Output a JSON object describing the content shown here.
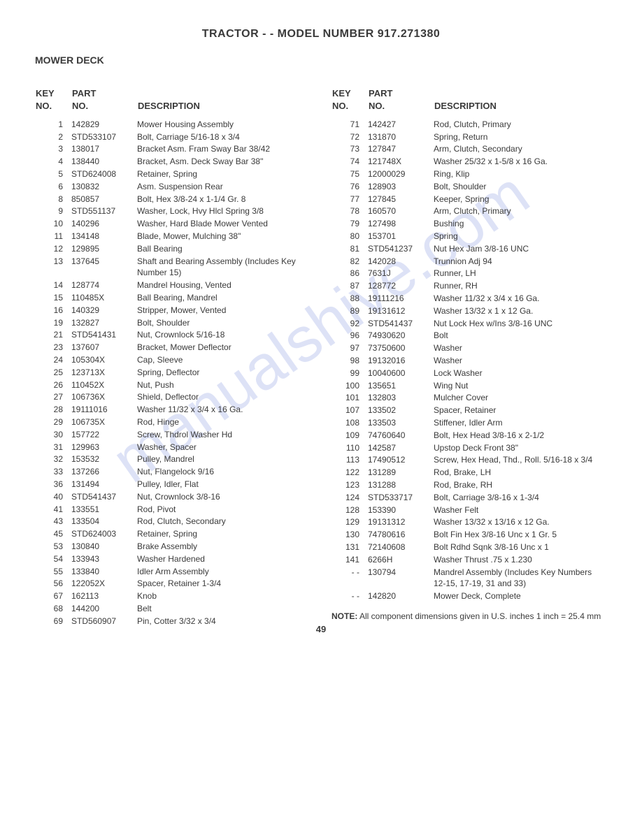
{
  "page_title": "TRACTOR - - MODEL NUMBER 917.271380",
  "section_title": "MOWER DECK",
  "headers": {
    "key_no_line1": "KEY",
    "key_no_line2": "NO.",
    "part_no_line1": "PART",
    "part_no_line2": "NO.",
    "description": "DESCRIPTION"
  },
  "left_rows": [
    {
      "key": "1",
      "part": "142829",
      "desc": "Mower Housing Assembly"
    },
    {
      "key": "2",
      "part": "STD533107",
      "desc": "Bolt, Carriage 5/16-18 x 3/4"
    },
    {
      "key": "3",
      "part": "138017",
      "desc": "Bracket Asm. Fram Sway Bar 38/42"
    },
    {
      "key": "4",
      "part": "138440",
      "desc": "Bracket, Asm. Deck Sway Bar 38\""
    },
    {
      "key": "5",
      "part": "STD624008",
      "desc": "Retainer, Spring"
    },
    {
      "key": "6",
      "part": "130832",
      "desc": "Asm. Suspension Rear"
    },
    {
      "key": "8",
      "part": "850857",
      "desc": "Bolt, Hex 3/8-24 x 1-1/4 Gr. 8"
    },
    {
      "key": "9",
      "part": "STD551137",
      "desc": "Washer, Lock, Hvy Hlcl Spring 3/8"
    },
    {
      "key": "10",
      "part": "140296",
      "desc": "Washer, Hard Blade Mower Vented"
    },
    {
      "key": "11",
      "part": "134148",
      "desc": "Blade, Mower, Mulching 38\""
    },
    {
      "key": "12",
      "part": "129895",
      "desc": "Ball Bearing"
    },
    {
      "key": "13",
      "part": "137645",
      "desc": "Shaft and Bearing Assembly (Includes Key Number 15)"
    },
    {
      "key": "14",
      "part": "128774",
      "desc": "Mandrel Housing, Vented"
    },
    {
      "key": "15",
      "part": "110485X",
      "desc": "Ball Bearing, Mandrel"
    },
    {
      "key": "16",
      "part": "140329",
      "desc": "Stripper, Mower, Vented"
    },
    {
      "key": "19",
      "part": "132827",
      "desc": "Bolt, Shoulder"
    },
    {
      "key": "21",
      "part": "STD541431",
      "desc": "Nut, Crownlock 5/16-18"
    },
    {
      "key": "23",
      "part": "137607",
      "desc": "Bracket, Mower Deflector"
    },
    {
      "key": "24",
      "part": "105304X",
      "desc": "Cap, Sleeve"
    },
    {
      "key": "25",
      "part": "123713X",
      "desc": "Spring, Deflector"
    },
    {
      "key": "26",
      "part": "110452X",
      "desc": "Nut, Push"
    },
    {
      "key": "27",
      "part": "106736X",
      "desc": "Shield, Deflector"
    },
    {
      "key": "28",
      "part": "19111016",
      "desc": "Washer 11/32 x 3/4 x 16 Ga."
    },
    {
      "key": "29",
      "part": "106735X",
      "desc": "Rod, Hinge"
    },
    {
      "key": "30",
      "part": "157722",
      "desc": "Screw, Thdrol Washer Hd"
    },
    {
      "key": "31",
      "part": "129963",
      "desc": "Washer, Spacer"
    },
    {
      "key": "32",
      "part": "153532",
      "desc": "Pulley, Mandrel"
    },
    {
      "key": "33",
      "part": "137266",
      "desc": "Nut, Flangelock 9/16"
    },
    {
      "key": "36",
      "part": "131494",
      "desc": "Pulley, Idler, Flat"
    },
    {
      "key": "40",
      "part": "STD541437",
      "desc": "Nut, Crownlock 3/8-16"
    },
    {
      "key": "41",
      "part": "133551",
      "desc": "Rod, Pivot"
    },
    {
      "key": "43",
      "part": "133504",
      "desc": "Rod, Clutch, Secondary"
    },
    {
      "key": "45",
      "part": "STD624003",
      "desc": "Retainer, Spring"
    },
    {
      "key": "53",
      "part": "130840",
      "desc": "Brake Assembly"
    },
    {
      "key": "54",
      "part": "133943",
      "desc": "Washer Hardened"
    },
    {
      "key": "55",
      "part": "133840",
      "desc": "Idler Arm Assembly"
    },
    {
      "key": "56",
      "part": "122052X",
      "desc": "Spacer, Retainer 1-3/4"
    },
    {
      "key": "67",
      "part": "162113",
      "desc": "Knob"
    },
    {
      "key": "68",
      "part": "144200",
      "desc": "Belt"
    },
    {
      "key": "69",
      "part": "STD560907",
      "desc": "Pin, Cotter 3/32 x 3/4"
    }
  ],
  "right_rows": [
    {
      "key": "71",
      "part": "142427",
      "desc": "Rod, Clutch, Primary"
    },
    {
      "key": "72",
      "part": "131870",
      "desc": "Spring, Return"
    },
    {
      "key": "73",
      "part": "127847",
      "desc": "Arm, Clutch, Secondary"
    },
    {
      "key": "74",
      "part": "121748X",
      "desc": "Washer 25/32 x 1-5/8 x 16 Ga."
    },
    {
      "key": "75",
      "part": "12000029",
      "desc": "Ring, Klip"
    },
    {
      "key": "76",
      "part": "128903",
      "desc": "Bolt, Shoulder"
    },
    {
      "key": "77",
      "part": "127845",
      "desc": "Keeper, Spring"
    },
    {
      "key": "78",
      "part": "160570",
      "desc": "Arm, Clutch, Primary"
    },
    {
      "key": "79",
      "part": "127498",
      "desc": "Bushing"
    },
    {
      "key": "80",
      "part": "153701",
      "desc": "Spring"
    },
    {
      "key": "81",
      "part": "STD541237",
      "desc": "Nut Hex Jam 3/8-16 UNC"
    },
    {
      "key": "82",
      "part": "142028",
      "desc": "Trunnion Adj 94"
    },
    {
      "key": "86",
      "part": "7631J",
      "desc": "Runner, LH"
    },
    {
      "key": "87",
      "part": "128772",
      "desc": "Runner, RH"
    },
    {
      "key": "88",
      "part": "19111216",
      "desc": "Washer 11/32 x 3/4 x 16 Ga."
    },
    {
      "key": "89",
      "part": "19131612",
      "desc": "Washer 13/32 x 1 x 12 Ga."
    },
    {
      "key": "92",
      "part": "STD541437",
      "desc": "Nut Lock Hex w/Ins 3/8-16 UNC"
    },
    {
      "key": "96",
      "part": "74930620",
      "desc": "Bolt"
    },
    {
      "key": "97",
      "part": "73750600",
      "desc": "Washer"
    },
    {
      "key": "98",
      "part": "19132016",
      "desc": "Washer"
    },
    {
      "key": "99",
      "part": "10040600",
      "desc": "Lock Washer"
    },
    {
      "key": "100",
      "part": "135651",
      "desc": "Wing Nut"
    },
    {
      "key": "101",
      "part": "132803",
      "desc": "Mulcher Cover"
    },
    {
      "key": "107",
      "part": "133502",
      "desc": "Spacer, Retainer"
    },
    {
      "key": "108",
      "part": "133503",
      "desc": "Stiffener, Idler Arm"
    },
    {
      "key": "109",
      "part": "74760640",
      "desc": "Bolt, Hex Head 3/8-16 x 2-1/2"
    },
    {
      "key": "110",
      "part": "142587",
      "desc": "Upstop Deck Front 38\""
    },
    {
      "key": "113",
      "part": "17490512",
      "desc": "Screw, Hex Head, Thd., Roll. 5/16-18 x 3/4"
    },
    {
      "key": "122",
      "part": "131289",
      "desc": "Rod, Brake, LH"
    },
    {
      "key": "123",
      "part": "131288",
      "desc": "Rod, Brake, RH"
    },
    {
      "key": "124",
      "part": "STD533717",
      "desc": "Bolt, Carriage 3/8-16 x 1-3/4"
    },
    {
      "key": "128",
      "part": "153390",
      "desc": "Washer Felt"
    },
    {
      "key": "129",
      "part": "19131312",
      "desc": "Washer 13/32 x 13/16 x 12 Ga."
    },
    {
      "key": "130",
      "part": "74780616",
      "desc": "Bolt Fin Hex 3/8-16 Unc x 1 Gr. 5"
    },
    {
      "key": "131",
      "part": "72140608",
      "desc": "Bolt Rdhd Sqnk 3/8-16 Unc x 1"
    },
    {
      "key": "141",
      "part": "6266H",
      "desc": "Washer Thrust .75 x 1.230"
    },
    {
      "key": "- -",
      "part": "130794",
      "desc": "Mandrel Assembly (Includes Key Numbers 12-15, 17-19, 31 and 33)"
    },
    {
      "key": "- -",
      "part": "142820",
      "desc": "Mower Deck, Complete"
    }
  ],
  "note_label": "NOTE:",
  "note_text": "All component dimensions given in U.S. inches 1 inch = 25.4 mm",
  "page_number": "49",
  "watermark": "manualshive.com"
}
